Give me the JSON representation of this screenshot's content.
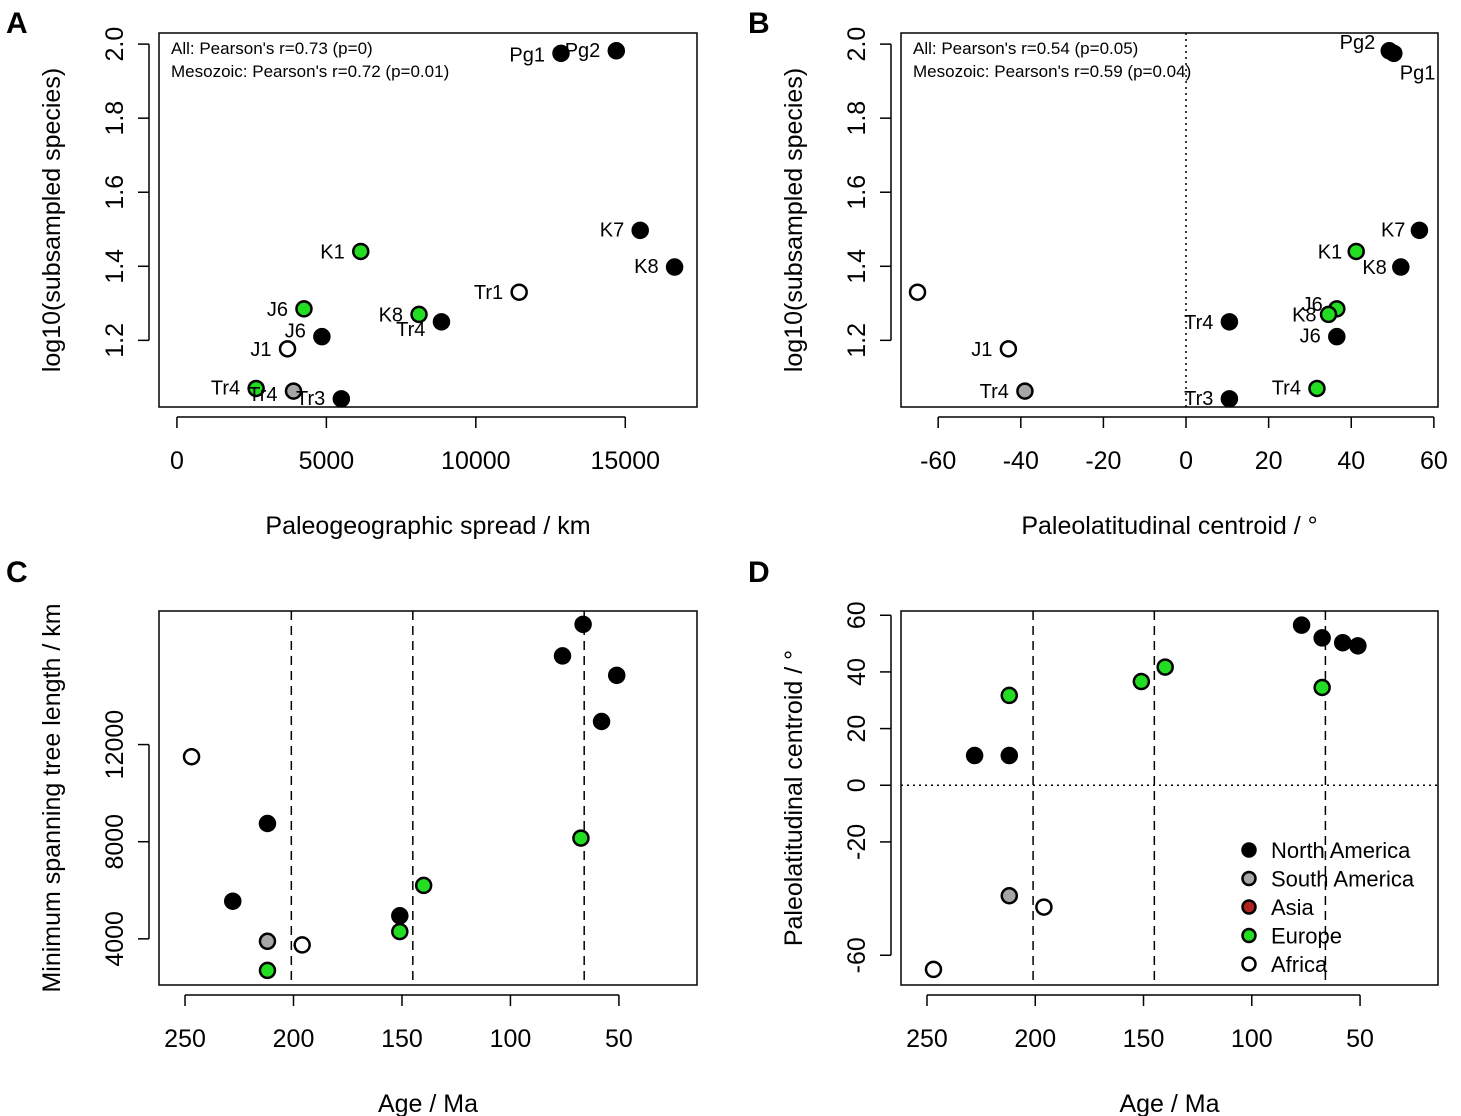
{
  "colors": {
    "north_america": "#000000",
    "south_america": "#a6a6a6",
    "asia": "#b22222",
    "europe": "#22dd22",
    "africa": "#ffffff"
  },
  "legend": {
    "position": "bottom-right of panel D",
    "entries": [
      {
        "label": "North America",
        "color": "#000000"
      },
      {
        "label": "South America",
        "color": "#a6a6a6"
      },
      {
        "label": "Asia",
        "color": "#b22222"
      },
      {
        "label": "Europe",
        "color": "#22dd22"
      },
      {
        "label": "Africa",
        "color": "#ffffff"
      }
    ]
  },
  "chart_data": [
    {
      "panel": "A",
      "type": "scatter",
      "xlabel": "Paleogeographic spread / km",
      "ylabel": "log10(subsampled species)",
      "xlim": [
        -600,
        17400
      ],
      "ylim": [
        1.02,
        2.03
      ],
      "xticks": [
        0,
        5000,
        10000,
        15000
      ],
      "yticks": [
        1.2,
        1.4,
        1.6,
        1.8,
        2.0
      ],
      "xtick_labels": [
        "0",
        "5000",
        "10000",
        "15000"
      ],
      "ytick_labels": [
        "1.2",
        "1.4",
        "1.6",
        "1.8",
        "2.0"
      ],
      "annotations": [
        "All: Pearson's r=0.73 (p=0)",
        "Mesozoic: Pearson's r=0.72 (p=0.01)"
      ],
      "points": [
        {
          "label": "Pg1",
          "x": 12850,
          "y": 1.975,
          "region": "north_america"
        },
        {
          "label": "Pg2",
          "x": 14700,
          "y": 1.982,
          "region": "north_america"
        },
        {
          "label": "K7",
          "x": 15500,
          "y": 1.497,
          "region": "north_america"
        },
        {
          "label": "K8",
          "x": 16650,
          "y": 1.398,
          "region": "north_america"
        },
        {
          "label": "K1",
          "x": 6150,
          "y": 1.44,
          "region": "europe"
        },
        {
          "label": "Tr1",
          "x": 11450,
          "y": 1.33,
          "region": "africa"
        },
        {
          "label": "K8",
          "x": 8100,
          "y": 1.27,
          "region": "europe"
        },
        {
          "label": "Tr4",
          "x": 8850,
          "y": 1.25,
          "region": "north_america"
        },
        {
          "label": "J6",
          "x": 4250,
          "y": 1.285,
          "region": "europe"
        },
        {
          "label": "J6",
          "x": 4850,
          "y": 1.21,
          "region": "north_america"
        },
        {
          "label": "J1",
          "x": 3700,
          "y": 1.177,
          "region": "africa"
        },
        {
          "label": "Tr4",
          "x": 2650,
          "y": 1.07,
          "region": "europe"
        },
        {
          "label": "Tr4",
          "x": 3900,
          "y": 1.063,
          "region": "south_america"
        },
        {
          "label": "Tr3",
          "x": 5500,
          "y": 1.042,
          "region": "north_america"
        }
      ]
    },
    {
      "panel": "B",
      "type": "scatter",
      "xlabel": "Paleolatitudinal centroid / °",
      "ylabel": "log10(subsampled species)",
      "xlim": [
        -69,
        61
      ],
      "ylim": [
        1.02,
        2.03
      ],
      "xticks": [
        -60,
        -40,
        -20,
        0,
        20,
        40,
        60
      ],
      "yticks": [
        1.2,
        1.4,
        1.6,
        1.8,
        2.0
      ],
      "xtick_labels": [
        "-60",
        "-40",
        "-20",
        "0",
        "20",
        "40",
        "60"
      ],
      "ytick_labels": [
        "1.2",
        "1.4",
        "1.6",
        "1.8",
        "2.0"
      ],
      "annotations": [
        "All: Pearson's r=0.54 (p=0.05)",
        "Mesozoic: Pearson's r=0.59 (p=0.04)"
      ],
      "points": [
        {
          "label": "Pg2",
          "x": 49.2,
          "y": 1.982,
          "region": "north_america"
        },
        {
          "label": "Pg1",
          "x": 50.3,
          "y": 1.975,
          "region": "north_america"
        },
        {
          "label": "K7",
          "x": 56.5,
          "y": 1.497,
          "region": "north_america"
        },
        {
          "label": "K1",
          "x": 41.2,
          "y": 1.44,
          "region": "europe"
        },
        {
          "label": "K8",
          "x": 52.0,
          "y": 1.398,
          "region": "north_america"
        },
        {
          "label": "",
          "x": -65.0,
          "y": 1.33,
          "region": "africa"
        },
        {
          "label": "J6",
          "x": 36.5,
          "y": 1.285,
          "region": "europe"
        },
        {
          "label": "K8",
          "x": 34.5,
          "y": 1.27,
          "region": "europe"
        },
        {
          "label": "Tr4",
          "x": 10.5,
          "y": 1.25,
          "region": "north_america"
        },
        {
          "label": "J6",
          "x": 36.5,
          "y": 1.21,
          "region": "north_america"
        },
        {
          "label": "J1",
          "x": -43.0,
          "y": 1.177,
          "region": "africa"
        },
        {
          "label": "Tr4",
          "x": 31.7,
          "y": 1.07,
          "region": "europe"
        },
        {
          "label": "Tr4",
          "x": -39.0,
          "y": 1.063,
          "region": "south_america"
        },
        {
          "label": "Tr3",
          "x": 10.5,
          "y": 1.042,
          "region": "north_america"
        }
      ]
    },
    {
      "panel": "C",
      "type": "scatter",
      "xlabel": "Age / Ma",
      "ylabel": "Minimum spanning tree length / km",
      "xlim": [
        262,
        14
      ],
      "ylim": [
        2100,
        17500
      ],
      "xticks": [
        250,
        200,
        150,
        100,
        50
      ],
      "yticks": [
        4000,
        8000,
        12000
      ],
      "xtick_labels": [
        "250",
        "200",
        "150",
        "100",
        "50"
      ],
      "ytick_labels": [
        "4000",
        "8000",
        "12000"
      ],
      "vlines": [
        201,
        145,
        66
      ],
      "points": [
        {
          "x": 66.5,
          "y": 16950,
          "region": "north_america"
        },
        {
          "x": 76,
          "y": 15650,
          "region": "north_america"
        },
        {
          "x": 51,
          "y": 14850,
          "region": "north_america"
        },
        {
          "x": 58,
          "y": 12950,
          "region": "north_america"
        },
        {
          "x": 247,
          "y": 11500,
          "region": "africa"
        },
        {
          "x": 212,
          "y": 8750,
          "region": "north_america"
        },
        {
          "x": 67.5,
          "y": 8150,
          "region": "europe"
        },
        {
          "x": 140,
          "y": 6200,
          "region": "europe"
        },
        {
          "x": 228,
          "y": 5550,
          "region": "north_america"
        },
        {
          "x": 151,
          "y": 4950,
          "region": "north_america"
        },
        {
          "x": 151,
          "y": 4300,
          "region": "europe"
        },
        {
          "x": 212,
          "y": 3900,
          "region": "south_america"
        },
        {
          "x": 196,
          "y": 3750,
          "region": "africa"
        },
        {
          "x": 212,
          "y": 2700,
          "region": "europe"
        }
      ]
    },
    {
      "panel": "D",
      "type": "scatter",
      "xlabel": "Age / Ma",
      "ylabel": "Paleolatitudinal centroid / °",
      "xlim": [
        262,
        14
      ],
      "ylim": [
        -70.5,
        61.5
      ],
      "xticks": [
        250,
        200,
        150,
        100,
        50
      ],
      "yticks": [
        -60,
        -20,
        0,
        20,
        40,
        60
      ],
      "xtick_labels": [
        "250",
        "200",
        "150",
        "100",
        "50"
      ],
      "ytick_labels": [
        "-60",
        "-20",
        "0",
        "20",
        "40",
        "60"
      ],
      "vlines": [
        201,
        145,
        66
      ],
      "hline": 0,
      "points": [
        {
          "x": 77,
          "y": 56.5,
          "region": "north_america"
        },
        {
          "x": 67.5,
          "y": 52,
          "region": "north_america"
        },
        {
          "x": 58,
          "y": 50.3,
          "region": "north_america"
        },
        {
          "x": 51,
          "y": 49.2,
          "region": "north_america"
        },
        {
          "x": 140,
          "y": 41.7,
          "region": "europe"
        },
        {
          "x": 151,
          "y": 36.6,
          "region": "europe"
        },
        {
          "x": 67.5,
          "y": 34.5,
          "region": "europe"
        },
        {
          "x": 212,
          "y": 31.7,
          "region": "europe"
        },
        {
          "x": 228,
          "y": 10.5,
          "region": "north_america"
        },
        {
          "x": 212,
          "y": 10.5,
          "region": "north_america"
        },
        {
          "x": 212,
          "y": -39,
          "region": "south_america"
        },
        {
          "x": 196,
          "y": -43,
          "region": "africa"
        },
        {
          "x": 247,
          "y": -65,
          "region": "africa"
        }
      ]
    }
  ]
}
